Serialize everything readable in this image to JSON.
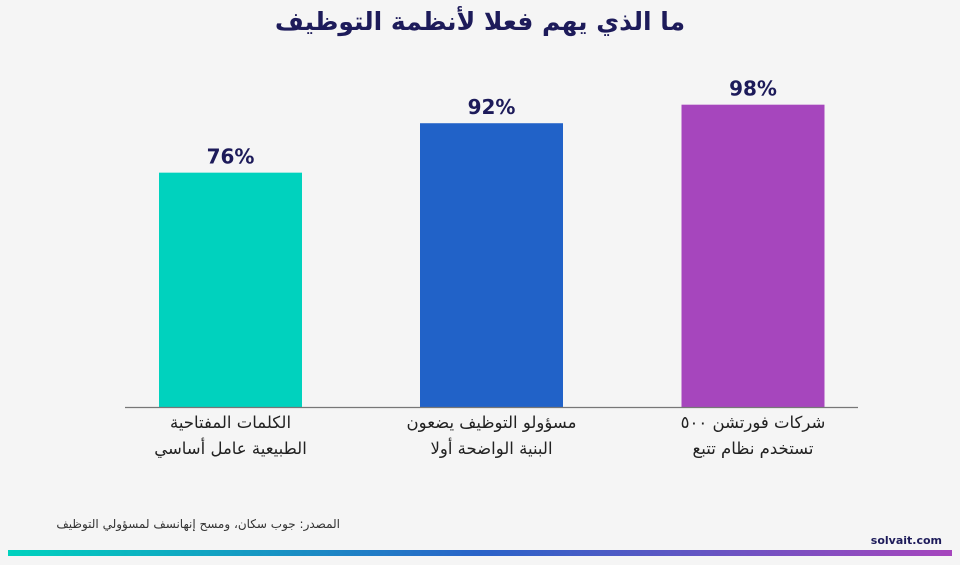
{
  "colors": {
    "title": "#1d1b5a",
    "axis": "#777777",
    "bars": [
      "#00d2be",
      "#2162c8",
      "#a646bd"
    ]
  },
  "footer": {
    "source": "المصدر: جوب سكان، ومسح إنهانسف لمسؤولي التوظيف",
    "brand": "solvait.com"
  },
  "chart_data": {
    "type": "bar",
    "title": "ما الذي يهم فعلا لأنظمة التوظيف",
    "categories": [
      "الكلمات المفتاحية\nالطبيعية عامل أساسي",
      "مسؤولو التوظيف يضعون\nالبنية الواضحة أولا",
      "شركات فورتشن ٥٠٠\nتستخدم نظام تتبع"
    ],
    "values": [
      76,
      92,
      98
    ],
    "value_labels": [
      "76%",
      "92%",
      "98%"
    ],
    "ylim": [
      0,
      100
    ],
    "grid": false,
    "xlabel": "",
    "ylabel": ""
  }
}
